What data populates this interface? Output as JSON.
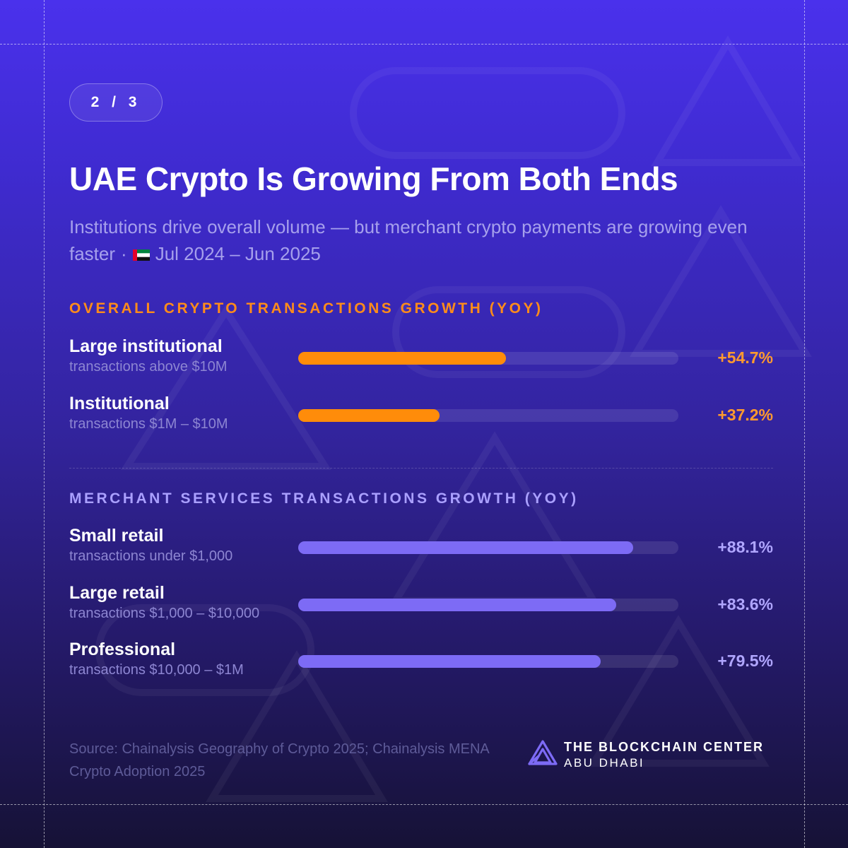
{
  "pager": "2 / 3",
  "title": "UAE Crypto Is Growing From Both Ends",
  "subtitle": {
    "text": "Institutions drive overall volume — but merchant crypto payments are growing even faster",
    "separator": "·",
    "period": "Jul 2024 – Jun 2025",
    "flag_icon": "uae-flag-icon"
  },
  "chart_data": {
    "type": "bar",
    "orientation": "horizontal",
    "title": "UAE Crypto Is Growing From Both Ends",
    "max_value": 100,
    "groups": [
      {
        "heading": "OVERALL CRYPTO TRANSACTIONS GROWTH (YOY)",
        "color": "#ff8c0a",
        "items": [
          {
            "label": "Large institutional",
            "sublabel": "transactions above $10M",
            "value": 54.7,
            "display": "+54.7%"
          },
          {
            "label": "Institutional",
            "sublabel": "transactions $1M – $10M",
            "value": 37.2,
            "display": "+37.2%"
          }
        ]
      },
      {
        "heading": "MERCHANT SERVICES TRANSACTIONS GROWTH (YOY)",
        "color": "#7d6bf5",
        "items": [
          {
            "label": "Small retail",
            "sublabel": "transactions under $1,000",
            "value": 88.1,
            "display": "+88.1%"
          },
          {
            "label": "Large retail",
            "sublabel": "transactions $1,000 – $10,000",
            "value": 83.6,
            "display": "+83.6%"
          },
          {
            "label": "Professional",
            "sublabel": "transactions $10,000 – $1M",
            "value": 79.5,
            "display": "+79.5%"
          }
        ]
      }
    ]
  },
  "source": "Source: Chainalysis Geography of Crypto 2025; Chainalysis MENA Crypto Adoption 2025",
  "brand": {
    "line1": "THE BLOCKCHAIN CENTER",
    "line2": "ABU DHABI",
    "icon": "blockchain-center-logo-icon"
  },
  "colors": {
    "background_top": "#4a31ec",
    "background_bottom": "#161236",
    "accent_orange": "#ff8c0a",
    "accent_purple": "#7d6bf5"
  }
}
